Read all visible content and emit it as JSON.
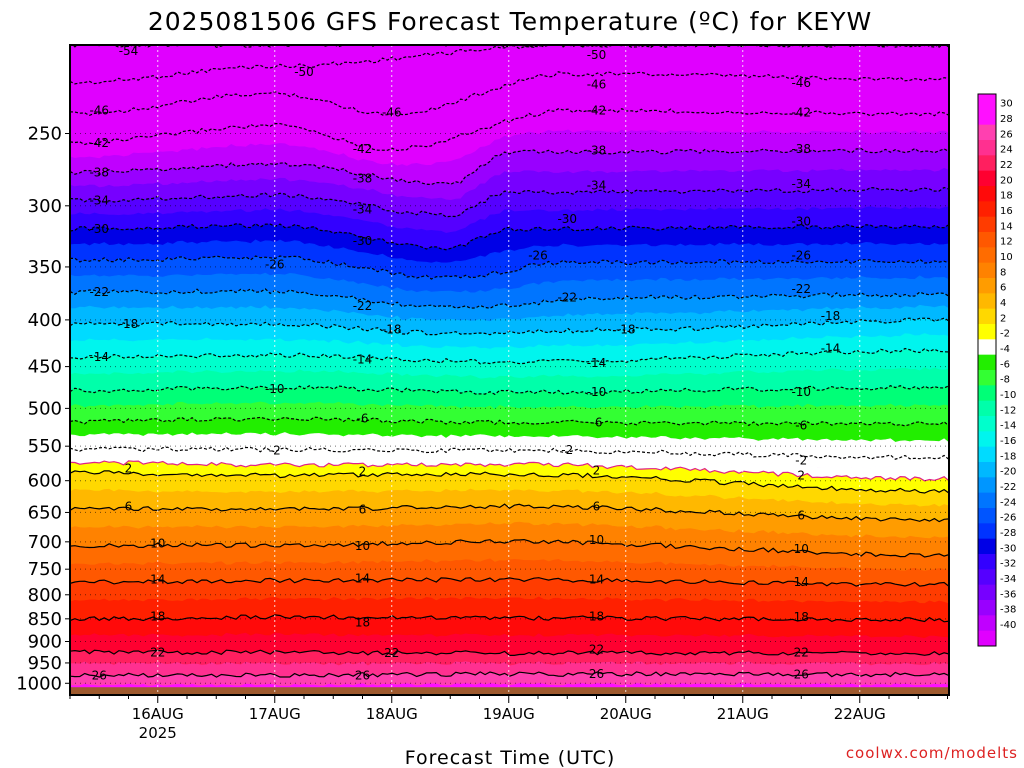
{
  "title": "2025081506 GFS Forecast Temperature (ºC) for KEYW",
  "xlabel": "Forecast Time (UTC)",
  "credit": "coolwx.com/modelts",
  "chart_data": {
    "type": "heatmap",
    "title": "2025081506 GFS Forecast Temperature (ºC) for KEYW",
    "xlabel": "Forecast Time (UTC)",
    "ylabel": "",
    "y_axis": "pressure (hPa), log scale, inverted",
    "ylim": [
      1030,
      200
    ],
    "x_tick_labels": [
      "16AUG",
      "17AUG",
      "18AUG",
      "19AUG",
      "20AUG",
      "21AUG",
      "22AUG"
    ],
    "x_year_label": "2025",
    "y_tick_labels": [
      250,
      300,
      350,
      400,
      450,
      500,
      550,
      600,
      650,
      700,
      750,
      800,
      850,
      900,
      950,
      1000
    ],
    "colorbar_labels": [
      30,
      28,
      26,
      24,
      22,
      20,
      18,
      16,
      14,
      12,
      10,
      8,
      6,
      4,
      2,
      -2,
      -4,
      -6,
      -8,
      -10,
      -12,
      -14,
      -16,
      -18,
      -20,
      -22,
      -24,
      -26,
      -28,
      -30,
      -32,
      -34,
      -36,
      -38,
      -40
    ],
    "colorbar_colors": [
      "#ff10ff",
      "#ff10ff",
      "#ff40b0",
      "#ff3090",
      "#ff1f5f",
      "#ff0030",
      "#ff0a0a",
      "#ff2000",
      "#ff3c00",
      "#ff5800",
      "#ff6c00",
      "#ff8200",
      "#ff9c00",
      "#ffb800",
      "#ffd800",
      "#ffff00",
      "#ffffff",
      "#22ee00",
      "#33ff33",
      "#00ff77",
      "#00ffaa",
      "#00ffcc",
      "#00f5ee",
      "#00dbff",
      "#00b8ff",
      "#0096ff",
      "#0075ff",
      "#0055ff",
      "#0033ff",
      "#0000e6",
      "#3300ff",
      "#5500ff",
      "#7700ff",
      "#9900ff",
      "#c000ff",
      "#e000ff"
    ],
    "series": [
      {
        "name": "-54",
        "values": [
          {
            "x": "15AUG 06",
            "y": 200
          }
        ]
      },
      {
        "name": "-50",
        "values": [
          {
            "x": "15AUG 06",
            "y": 220
          },
          {
            "x": "17AUG 00",
            "y": 211
          },
          {
            "x": "19AUG 12",
            "y": 200
          },
          {
            "x": "22AUG 18",
            "y": 200
          }
        ]
      },
      {
        "name": "-46",
        "values": [
          {
            "x": "15AUG 06",
            "y": 238
          },
          {
            "x": "17AUG 00",
            "y": 226
          },
          {
            "x": "18AUG 00",
            "y": 238
          },
          {
            "x": "19AUG 12",
            "y": 215
          },
          {
            "x": "22AUG 18",
            "y": 218
          }
        ]
      },
      {
        "name": "-42",
        "values": [
          {
            "x": "15AUG 06",
            "y": 256
          },
          {
            "x": "17AUG 00",
            "y": 245
          },
          {
            "x": "18AUG 00",
            "y": 260
          },
          {
            "x": "19AUG 12",
            "y": 236
          },
          {
            "x": "22AUG 18",
            "y": 238
          }
        ]
      },
      {
        "name": "-38",
        "values": [
          {
            "x": "15AUG 06",
            "y": 276
          },
          {
            "x": "17AUG 00",
            "y": 270
          },
          {
            "x": "18AUG 12",
            "y": 284
          },
          {
            "x": "19AUG 00",
            "y": 262
          },
          {
            "x": "22AUG 18",
            "y": 261
          }
        ]
      },
      {
        "name": "-34",
        "values": [
          {
            "x": "15AUG 06",
            "y": 296
          },
          {
            "x": "17AUG 00",
            "y": 292
          },
          {
            "x": "18AUG 12",
            "y": 307
          },
          {
            "x": "19AUG 00",
            "y": 290
          },
          {
            "x": "22AUG 18",
            "y": 288
          }
        ]
      },
      {
        "name": "-30",
        "values": [
          {
            "x": "15AUG 06",
            "y": 318
          },
          {
            "x": "17AUG 00",
            "y": 315
          },
          {
            "x": "18AUG 12",
            "y": 334
          },
          {
            "x": "19AUG 00",
            "y": 318
          },
          {
            "x": "22AUG 18",
            "y": 316
          }
        ]
      },
      {
        "name": "-26",
        "values": [
          {
            "x": "15AUG 06",
            "y": 344
          },
          {
            "x": "17AUG 00",
            "y": 342
          },
          {
            "x": "18AUG 12",
            "y": 360
          },
          {
            "x": "19AUG 12",
            "y": 346
          },
          {
            "x": "22AUG 18",
            "y": 345
          }
        ]
      },
      {
        "name": "-22",
        "values": [
          {
            "x": "15AUG 06",
            "y": 373
          },
          {
            "x": "17AUG 00",
            "y": 372
          },
          {
            "x": "18AUG 12",
            "y": 388
          },
          {
            "x": "20AUG 00",
            "y": 378
          },
          {
            "x": "22AUG 18",
            "y": 375
          }
        ]
      },
      {
        "name": "-18",
        "values": [
          {
            "x": "15AUG 06",
            "y": 404
          },
          {
            "x": "17AUG 00",
            "y": 404
          },
          {
            "x": "18AUG 12",
            "y": 414
          },
          {
            "x": "20AUG 00",
            "y": 410
          },
          {
            "x": "22AUG 18",
            "y": 400
          }
        ]
      },
      {
        "name": "-14",
        "values": [
          {
            "x": "15AUG 06",
            "y": 439
          },
          {
            "x": "17AUG 00",
            "y": 437
          },
          {
            "x": "19AUG 00",
            "y": 445
          },
          {
            "x": "22AUG 18",
            "y": 432
          }
        ]
      },
      {
        "name": "-10",
        "values": [
          {
            "x": "15AUG 06",
            "y": 478
          },
          {
            "x": "17AUG 00",
            "y": 474
          },
          {
            "x": "19AUG 00",
            "y": 480
          },
          {
            "x": "22AUG 18",
            "y": 474
          }
        ]
      },
      {
        "name": "-6",
        "values": [
          {
            "x": "15AUG 06",
            "y": 517
          },
          {
            "x": "17AUG 00",
            "y": 513
          },
          {
            "x": "19AUG 00",
            "y": 518
          },
          {
            "x": "22AUG 18",
            "y": 520
          }
        ]
      },
      {
        "name": "-2",
        "values": [
          {
            "x": "15AUG 06",
            "y": 554
          },
          {
            "x": "17AUG 00",
            "y": 555
          },
          {
            "x": "19AUG 00",
            "y": 556
          },
          {
            "x": "22AUG 18",
            "y": 566
          }
        ]
      },
      {
        "name": "0",
        "values": [
          {
            "x": "15AUG 06",
            "y": 573
          },
          {
            "x": "17AUG 00",
            "y": 577
          },
          {
            "x": "19AUG 00",
            "y": 576
          },
          {
            "x": "22AUG 18",
            "y": 597
          }
        ]
      },
      {
        "name": "2",
        "values": [
          {
            "x": "15AUG 06",
            "y": 588
          },
          {
            "x": "17AUG 00",
            "y": 592
          },
          {
            "x": "19AUG 00",
            "y": 590
          },
          {
            "x": "22AUG 18",
            "y": 616
          }
        ]
      },
      {
        "name": "6",
        "values": [
          {
            "x": "15AUG 06",
            "y": 643
          },
          {
            "x": "17AUG 00",
            "y": 645
          },
          {
            "x": "19AUG 00",
            "y": 640
          },
          {
            "x": "22AUG 18",
            "y": 663
          }
        ]
      },
      {
        "name": "10",
        "values": [
          {
            "x": "15AUG 06",
            "y": 706
          },
          {
            "x": "17AUG 00",
            "y": 706
          },
          {
            "x": "19AUG 00",
            "y": 700
          },
          {
            "x": "22AUG 18",
            "y": 724
          }
        ]
      },
      {
        "name": "14",
        "values": [
          {
            "x": "15AUG 06",
            "y": 775
          },
          {
            "x": "17AUG 00",
            "y": 772
          },
          {
            "x": "19AUG 00",
            "y": 770
          },
          {
            "x": "22AUG 18",
            "y": 780
          }
        ]
      },
      {
        "name": "18",
        "values": [
          {
            "x": "15AUG 06",
            "y": 850
          },
          {
            "x": "17AUG 00",
            "y": 846
          },
          {
            "x": "19AUG 00",
            "y": 848
          },
          {
            "x": "22AUG 18",
            "y": 852
          }
        ]
      },
      {
        "name": "22",
        "values": [
          {
            "x": "15AUG 06",
            "y": 925
          },
          {
            "x": "17AUG 00",
            "y": 925
          },
          {
            "x": "19AUG 00",
            "y": 927
          },
          {
            "x": "22AUG 18",
            "y": 927
          }
        ]
      },
      {
        "name": "26",
        "values": [
          {
            "x": "15AUG 06",
            "y": 980
          },
          {
            "x": "17AUG 00",
            "y": 980
          },
          {
            "x": "19AUG 00",
            "y": 977
          },
          {
            "x": "22AUG 18",
            "y": 978
          }
        ]
      }
    ],
    "contour_labels": [
      {
        "text": "-54",
        "x": "15AUG 18",
        "y": 203
      },
      {
        "text": "-50",
        "x": "17AUG 06",
        "y": 214
      },
      {
        "text": "-50",
        "x": "19AUG 18",
        "y": 205
      },
      {
        "text": "-46",
        "x": "15AUG 12",
        "y": 236
      },
      {
        "text": "-46",
        "x": "18AUG 00",
        "y": 237
      },
      {
        "text": "-46",
        "x": "19AUG 18",
        "y": 221
      },
      {
        "text": "-46",
        "x": "21AUG 12",
        "y": 220
      },
      {
        "text": "-42",
        "x": "15AUG 12",
        "y": 256
      },
      {
        "text": "-42",
        "x": "17AUG 18",
        "y": 260
      },
      {
        "text": "-42",
        "x": "19AUG 18",
        "y": 236
      },
      {
        "text": "-42",
        "x": "21AUG 12",
        "y": 237
      },
      {
        "text": "-38",
        "x": "15AUG 12",
        "y": 276
      },
      {
        "text": "-38",
        "x": "17AUG 18",
        "y": 280
      },
      {
        "text": "-38",
        "x": "19AUG 18",
        "y": 261
      },
      {
        "text": "-38",
        "x": "21AUG 12",
        "y": 260
      },
      {
        "text": "-34",
        "x": "15AUG 12",
        "y": 296
      },
      {
        "text": "-34",
        "x": "17AUG 18",
        "y": 303
      },
      {
        "text": "-34",
        "x": "19AUG 18",
        "y": 285
      },
      {
        "text": "-34",
        "x": "21AUG 12",
        "y": 284
      },
      {
        "text": "-30",
        "x": "15AUG 12",
        "y": 318
      },
      {
        "text": "-30",
        "x": "17AUG 18",
        "y": 328
      },
      {
        "text": "-30",
        "x": "19AUG 12",
        "y": 310
      },
      {
        "text": "-30",
        "x": "21AUG 12",
        "y": 312
      },
      {
        "text": "-26",
        "x": "17AUG 00",
        "y": 348
      },
      {
        "text": "-26",
        "x": "19AUG 06",
        "y": 340
      },
      {
        "text": "-26",
        "x": "21AUG 12",
        "y": 340
      },
      {
        "text": "-22",
        "x": "15AUG 12",
        "y": 373
      },
      {
        "text": "-22",
        "x": "17AUG 18",
        "y": 386
      },
      {
        "text": "-22",
        "x": "19AUG 12",
        "y": 378
      },
      {
        "text": "-22",
        "x": "21AUG 12",
        "y": 370
      },
      {
        "text": "-18",
        "x": "15AUG 18",
        "y": 404
      },
      {
        "text": "-18",
        "x": "18AUG 00",
        "y": 410
      },
      {
        "text": "-18",
        "x": "20AUG 00",
        "y": 410
      },
      {
        "text": "-18",
        "x": "21AUG 18",
        "y": 396
      },
      {
        "text": "-14",
        "x": "15AUG 12",
        "y": 439
      },
      {
        "text": "-14",
        "x": "17AUG 18",
        "y": 442
      },
      {
        "text": "-14",
        "x": "19AUG 18",
        "y": 446
      },
      {
        "text": "-14",
        "x": "21AUG 18",
        "y": 430
      },
      {
        "text": "-10",
        "x": "17AUG 00",
        "y": 476
      },
      {
        "text": "-10",
        "x": "19AUG 18",
        "y": 480
      },
      {
        "text": "-10",
        "x": "21AUG 12",
        "y": 480
      },
      {
        "text": "-6",
        "x": "17AUG 18",
        "y": 513
      },
      {
        "text": "-6",
        "x": "19AUG 18",
        "y": 518
      },
      {
        "text": "-6",
        "x": "21AUG 12",
        "y": 522
      },
      {
        "text": "-2",
        "x": "17AUG 00",
        "y": 556
      },
      {
        "text": "-2",
        "x": "19AUG 12",
        "y": 555
      },
      {
        "text": "2",
        "x": "15AUG 18",
        "y": 582
      },
      {
        "text": "2",
        "x": "17AUG 18",
        "y": 586
      },
      {
        "text": "-2",
        "x": "21AUG 12",
        "y": 570
      },
      {
        "text": "2",
        "x": "19AUG 18",
        "y": 585
      },
      {
        "text": "2",
        "x": "21AUG 12",
        "y": 592
      },
      {
        "text": "6",
        "x": "15AUG 18",
        "y": 640
      },
      {
        "text": "6",
        "x": "17AUG 18",
        "y": 645
      },
      {
        "text": "6",
        "x": "19AUG 18",
        "y": 640
      },
      {
        "text": "6",
        "x": "21AUG 12",
        "y": 655
      },
      {
        "text": "10",
        "x": "16AUG 00",
        "y": 703
      },
      {
        "text": "10",
        "x": "17AUG 18",
        "y": 707
      },
      {
        "text": "10",
        "x": "19AUG 18",
        "y": 697
      },
      {
        "text": "10",
        "x": "21AUG 12",
        "y": 713
      },
      {
        "text": "14",
        "x": "16AUG 00",
        "y": 770
      },
      {
        "text": "14",
        "x": "17AUG 18",
        "y": 768
      },
      {
        "text": "14",
        "x": "19AUG 18",
        "y": 770
      },
      {
        "text": "14",
        "x": "21AUG 12",
        "y": 775
      },
      {
        "text": "18",
        "x": "16AUG 00",
        "y": 845
      },
      {
        "text": "18",
        "x": "17AUG 18",
        "y": 858
      },
      {
        "text": "18",
        "x": "19AUG 18",
        "y": 845
      },
      {
        "text": "18",
        "x": "21AUG 12",
        "y": 846
      },
      {
        "text": "22",
        "x": "16AUG 00",
        "y": 925
      },
      {
        "text": "22",
        "x": "18AUG 00",
        "y": 927
      },
      {
        "text": "22",
        "x": "19AUG 18",
        "y": 918
      },
      {
        "text": "22",
        "x": "21AUG 12",
        "y": 925
      },
      {
        "text": "26",
        "x": "15AUG 12",
        "y": 980
      },
      {
        "text": "26",
        "x": "17AUG 18",
        "y": 980
      },
      {
        "text": "26",
        "x": "19AUG 18",
        "y": 977
      },
      {
        "text": "26",
        "x": "21AUG 12",
        "y": 978
      }
    ],
    "grid": true
  }
}
